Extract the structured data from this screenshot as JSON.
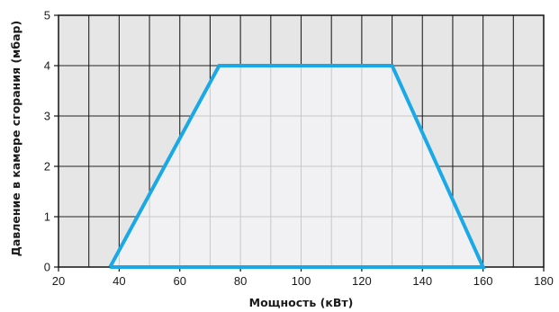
{
  "chart_data": {
    "type": "area",
    "xlabel": "Мощность (кВт)",
    "ylabel": "Давление в камере сгорания (мбар)",
    "xlim": [
      20,
      180
    ],
    "ylim": [
      0,
      5
    ],
    "x_ticks": [
      20,
      40,
      60,
      80,
      100,
      120,
      140,
      160,
      180
    ],
    "y_ticks": [
      0,
      1,
      2,
      3,
      4,
      5
    ],
    "x_grid_step": 10,
    "y_grid_step": 1,
    "grid": true,
    "series": [
      {
        "x": [
          37,
          73,
          130,
          160,
          37
        ],
        "y": [
          0,
          4,
          4,
          0,
          0
        ]
      }
    ],
    "colors": {
      "outline": "#1aa9e6",
      "fill_inside": "#f1f1f4",
      "fill_outside": "#e6e6e6",
      "grid_inside": "#c8c8c8",
      "grid_outside": "#222222"
    }
  }
}
